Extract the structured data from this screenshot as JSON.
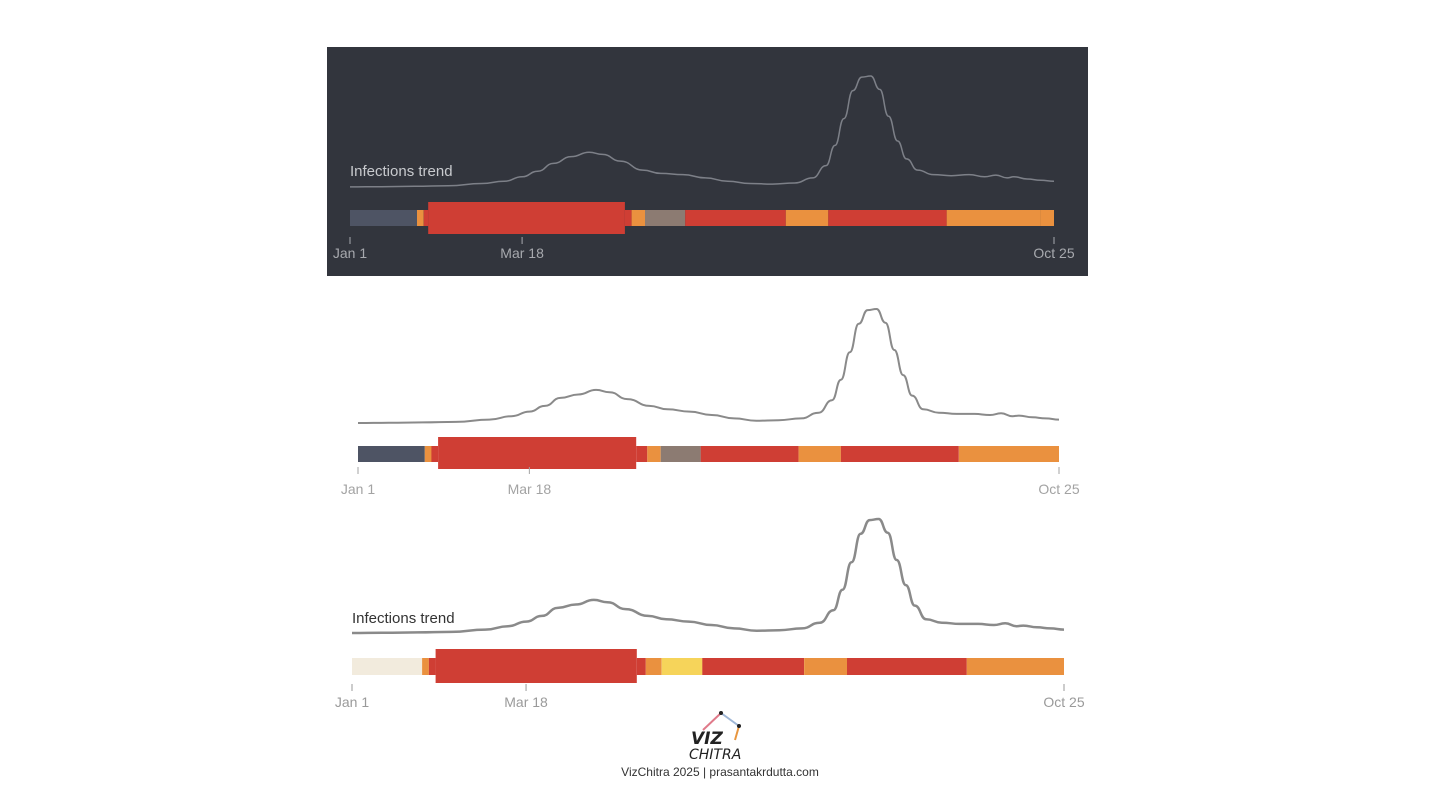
{
  "chart_data": [
    {
      "type": "area",
      "theme": "dark",
      "background": "#32353d",
      "trend_label": "Infections trend",
      "line_color": "#7d8088",
      "x_ticks": [
        "Jan 1",
        "Mar 18",
        "Oct 25"
      ],
      "tick_color": "#a7a9ae",
      "trend": [
        [
          1,
          0.01
        ],
        [
          15,
          0.012
        ],
        [
          30,
          0.015
        ],
        [
          45,
          0.02
        ],
        [
          60,
          0.04
        ],
        [
          70,
          0.06
        ],
        [
          78,
          0.1
        ],
        [
          85,
          0.15
        ],
        [
          92,
          0.22
        ],
        [
          100,
          0.28
        ],
        [
          108,
          0.32
        ],
        [
          114,
          0.3
        ],
        [
          122,
          0.24
        ],
        [
          132,
          0.16
        ],
        [
          140,
          0.13
        ],
        [
          150,
          0.12
        ],
        [
          160,
          0.09
        ],
        [
          170,
          0.06
        ],
        [
          180,
          0.04
        ],
        [
          190,
          0.035
        ],
        [
          200,
          0.045
        ],
        [
          208,
          0.09
        ],
        [
          214,
          0.2
        ],
        [
          218,
          0.38
        ],
        [
          222,
          0.62
        ],
        [
          226,
          0.87
        ],
        [
          230,
          0.99
        ],
        [
          234,
          1.0
        ],
        [
          238,
          0.88
        ],
        [
          242,
          0.64
        ],
        [
          246,
          0.42
        ],
        [
          250,
          0.26
        ],
        [
          255,
          0.16
        ],
        [
          262,
          0.12
        ],
        [
          270,
          0.11
        ],
        [
          278,
          0.12
        ],
        [
          285,
          0.1
        ],
        [
          290,
          0.115
        ],
        [
          295,
          0.09
        ],
        [
          298,
          0.1
        ],
        [
          304,
          0.08
        ],
        [
          310,
          0.07
        ],
        [
          316,
          0.06
        ]
      ],
      "bands": [
        {
          "start": 1,
          "end": 31,
          "color": "#4e5464",
          "size": "small"
        },
        {
          "start": 31,
          "end": 34,
          "color": "#ea913f",
          "size": "small"
        },
        {
          "start": 34,
          "end": 36,
          "color": "#cf3e34",
          "size": "small"
        },
        {
          "start": 36,
          "end": 124,
          "color": "#cf3e34",
          "size": "large"
        },
        {
          "start": 124,
          "end": 127,
          "color": "#cf3e34",
          "size": "small"
        },
        {
          "start": 127,
          "end": 133,
          "color": "#ea913f",
          "size": "small"
        },
        {
          "start": 133,
          "end": 151,
          "color": "#8c7b72",
          "size": "small"
        },
        {
          "start": 151,
          "end": 196,
          "color": "#cf3e34",
          "size": "small"
        },
        {
          "start": 196,
          "end": 215,
          "color": "#ea913f",
          "size": "small"
        },
        {
          "start": 215,
          "end": 268,
          "color": "#cf3e34",
          "size": "small"
        },
        {
          "start": 268,
          "end": 310,
          "color": "#ea913f",
          "size": "small"
        },
        {
          "start": 310,
          "end": 316,
          "color": "#ea913f",
          "size": "small"
        }
      ]
    },
    {
      "type": "area",
      "theme": "light",
      "background": "#ffffff",
      "trend_label": "",
      "line_color": "#8a8a8a",
      "x_ticks": [
        "Jan 1",
        "Mar 18",
        "Oct 25"
      ],
      "tick_color": "#a3a3a3",
      "trend": [
        [
          1,
          0.0
        ],
        [
          15,
          0.002
        ],
        [
          30,
          0.005
        ],
        [
          45,
          0.01
        ],
        [
          60,
          0.03
        ],
        [
          70,
          0.06
        ],
        [
          78,
          0.1
        ],
        [
          85,
          0.15
        ],
        [
          92,
          0.22
        ],
        [
          100,
          0.25
        ],
        [
          108,
          0.29
        ],
        [
          114,
          0.27
        ],
        [
          122,
          0.21
        ],
        [
          132,
          0.15
        ],
        [
          140,
          0.12
        ],
        [
          150,
          0.1
        ],
        [
          160,
          0.07
        ],
        [
          170,
          0.04
        ],
        [
          180,
          0.02
        ],
        [
          190,
          0.025
        ],
        [
          200,
          0.04
        ],
        [
          208,
          0.09
        ],
        [
          214,
          0.2
        ],
        [
          218,
          0.38
        ],
        [
          222,
          0.62
        ],
        [
          226,
          0.87
        ],
        [
          230,
          0.99
        ],
        [
          234,
          1.0
        ],
        [
          238,
          0.88
        ],
        [
          242,
          0.64
        ],
        [
          246,
          0.42
        ],
        [
          250,
          0.24
        ],
        [
          255,
          0.12
        ],
        [
          262,
          0.09
        ],
        [
          270,
          0.08
        ],
        [
          278,
          0.08
        ],
        [
          285,
          0.07
        ],
        [
          290,
          0.085
        ],
        [
          295,
          0.06
        ],
        [
          298,
          0.065
        ],
        [
          304,
          0.05
        ],
        [
          310,
          0.04
        ],
        [
          316,
          0.03
        ]
      ],
      "bands": [
        {
          "start": 1,
          "end": 31,
          "color": "#4e5464",
          "size": "small"
        },
        {
          "start": 31,
          "end": 34,
          "color": "#ea913f",
          "size": "small"
        },
        {
          "start": 34,
          "end": 37,
          "color": "#cf3e34",
          "size": "small"
        },
        {
          "start": 37,
          "end": 126,
          "color": "#cf3e34",
          "size": "large"
        },
        {
          "start": 126,
          "end": 131,
          "color": "#cf3e34",
          "size": "small"
        },
        {
          "start": 131,
          "end": 137,
          "color": "#ea913f",
          "size": "small"
        },
        {
          "start": 137,
          "end": 155,
          "color": "#8c7b72",
          "size": "small"
        },
        {
          "start": 155,
          "end": 199,
          "color": "#cf3e34",
          "size": "small"
        },
        {
          "start": 199,
          "end": 218,
          "color": "#ea913f",
          "size": "small"
        },
        {
          "start": 218,
          "end": 271,
          "color": "#cf3e34",
          "size": "small"
        },
        {
          "start": 271,
          "end": 316,
          "color": "#ea913f",
          "size": "small"
        }
      ]
    },
    {
      "type": "area",
      "theme": "light",
      "background": "#ffffff",
      "trend_label": "Infections trend",
      "line_color": "#8a8a8a",
      "x_ticks": [
        "Jan 1",
        "Mar 18",
        "Oct 25"
      ],
      "tick_color": "#9a9a9a",
      "trend": [
        [
          1,
          0.0
        ],
        [
          15,
          0.002
        ],
        [
          30,
          0.005
        ],
        [
          45,
          0.01
        ],
        [
          60,
          0.03
        ],
        [
          70,
          0.06
        ],
        [
          78,
          0.1
        ],
        [
          85,
          0.15
        ],
        [
          92,
          0.22
        ],
        [
          100,
          0.25
        ],
        [
          108,
          0.29
        ],
        [
          114,
          0.27
        ],
        [
          122,
          0.21
        ],
        [
          132,
          0.15
        ],
        [
          140,
          0.12
        ],
        [
          150,
          0.1
        ],
        [
          160,
          0.07
        ],
        [
          170,
          0.04
        ],
        [
          180,
          0.02
        ],
        [
          190,
          0.025
        ],
        [
          200,
          0.04
        ],
        [
          208,
          0.09
        ],
        [
          214,
          0.2
        ],
        [
          218,
          0.38
        ],
        [
          222,
          0.62
        ],
        [
          226,
          0.87
        ],
        [
          230,
          0.99
        ],
        [
          234,
          1.0
        ],
        [
          238,
          0.88
        ],
        [
          242,
          0.64
        ],
        [
          246,
          0.42
        ],
        [
          250,
          0.24
        ],
        [
          255,
          0.12
        ],
        [
          262,
          0.09
        ],
        [
          270,
          0.08
        ],
        [
          278,
          0.08
        ],
        [
          285,
          0.07
        ],
        [
          290,
          0.085
        ],
        [
          295,
          0.06
        ],
        [
          298,
          0.065
        ],
        [
          304,
          0.05
        ],
        [
          310,
          0.04
        ],
        [
          316,
          0.03
        ]
      ],
      "bands": [
        {
          "start": 1,
          "end": 32,
          "color": "#f2ebdd",
          "size": "small"
        },
        {
          "start": 32,
          "end": 35,
          "color": "#ea913f",
          "size": "small"
        },
        {
          "start": 35,
          "end": 38,
          "color": "#cf3e34",
          "size": "small"
        },
        {
          "start": 38,
          "end": 127,
          "color": "#cf3e34",
          "size": "large"
        },
        {
          "start": 127,
          "end": 131,
          "color": "#cf3e34",
          "size": "small"
        },
        {
          "start": 131,
          "end": 138,
          "color": "#ea913f",
          "size": "small"
        },
        {
          "start": 138,
          "end": 156,
          "color": "#f6d45a",
          "size": "small"
        },
        {
          "start": 156,
          "end": 201,
          "color": "#cf3e34",
          "size": "small"
        },
        {
          "start": 201,
          "end": 220,
          "color": "#ea913f",
          "size": "small"
        },
        {
          "start": 220,
          "end": 273,
          "color": "#cf3e34",
          "size": "small"
        },
        {
          "start": 273,
          "end": 316,
          "color": "#ea913f",
          "size": "small"
        }
      ]
    }
  ],
  "logo": {
    "word1": "VIZ",
    "word2": "CHITRA",
    "colors": [
      "#e07a8a",
      "#9fb7d6",
      "#e8963f",
      "#222222"
    ]
  },
  "footer": {
    "text": "VizChitra 2025 | prasantakrdutta.com"
  }
}
